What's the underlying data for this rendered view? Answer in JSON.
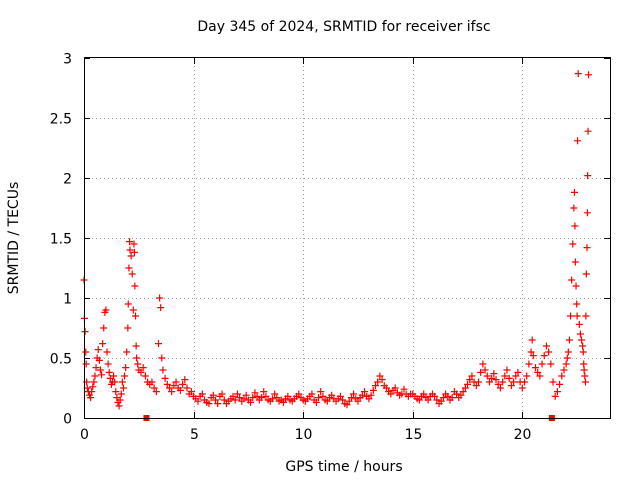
{
  "chart_data": {
    "type": "scatter",
    "title": "Day 345 of 2024, SRMTID for receiver ifsc",
    "xlabel": "GPS time / hours",
    "ylabel": "SRMTID / TECUs",
    "xlim": [
      0,
      24
    ],
    "ylim": [
      0,
      3
    ],
    "x_ticks": [
      0,
      5,
      10,
      15,
      20
    ],
    "x_tick_labels": [
      "0",
      "5",
      "10",
      "15",
      "20"
    ],
    "y_ticks": [
      0,
      0.5,
      1,
      1.5,
      2,
      2.5,
      3
    ],
    "y_tick_labels": [
      "0",
      "0.5",
      "1",
      "1.5",
      "2",
      "2.5",
      "3"
    ],
    "grid": true,
    "marker": "plus",
    "color": "#ff0000",
    "series": [
      {
        "name": "SRMTID",
        "points": [
          [
            0.0,
            1.15
          ],
          [
            0.02,
            0.83
          ],
          [
            0.05,
            0.72
          ],
          [
            0.08,
            0.55
          ],
          [
            0.1,
            0.45
          ],
          [
            0.12,
            0.3
          ],
          [
            0.15,
            0.25
          ],
          [
            0.2,
            0.22
          ],
          [
            0.25,
            0.19
          ],
          [
            0.3,
            0.17
          ],
          [
            0.35,
            0.22
          ],
          [
            0.4,
            0.26
          ],
          [
            0.45,
            0.3
          ],
          [
            0.5,
            0.35
          ],
          [
            0.55,
            0.42
          ],
          [
            0.6,
            0.5
          ],
          [
            0.65,
            0.57
          ],
          [
            0.7,
            0.48
          ],
          [
            0.75,
            0.4
          ],
          [
            0.8,
            0.36
          ],
          [
            0.85,
            0.62
          ],
          [
            0.9,
            0.75
          ],
          [
            0.95,
            0.88
          ],
          [
            1.0,
            0.9
          ],
          [
            1.05,
            0.55
          ],
          [
            1.1,
            0.45
          ],
          [
            1.15,
            0.38
          ],
          [
            1.2,
            0.33
          ],
          [
            1.25,
            0.28
          ],
          [
            1.3,
            0.3
          ],
          [
            1.35,
            0.35
          ],
          [
            1.4,
            0.3
          ],
          [
            1.45,
            0.22
          ],
          [
            1.5,
            0.17
          ],
          [
            1.55,
            0.13
          ],
          [
            1.6,
            0.1
          ],
          [
            1.65,
            0.15
          ],
          [
            1.7,
            0.2
          ],
          [
            1.75,
            0.3
          ],
          [
            1.8,
            0.25
          ],
          [
            1.85,
            0.35
          ],
          [
            1.9,
            0.42
          ],
          [
            1.95,
            0.55
          ],
          [
            2.0,
            0.75
          ],
          [
            2.02,
            0.95
          ],
          [
            2.05,
            1.25
          ],
          [
            2.08,
            1.47
          ],
          [
            2.1,
            1.4
          ],
          [
            2.15,
            1.35
          ],
          [
            2.2,
            1.2
          ],
          [
            2.25,
            0.9
          ],
          [
            2.28,
            1.45
          ],
          [
            2.3,
            1.38
          ],
          [
            2.32,
            1.1
          ],
          [
            2.35,
            0.85
          ],
          [
            2.38,
            0.6
          ],
          [
            2.4,
            0.5
          ],
          [
            2.45,
            0.45
          ],
          [
            2.5,
            0.4
          ],
          [
            2.6,
            0.38
          ],
          [
            2.7,
            0.42
          ],
          [
            2.8,
            0.35
          ],
          [
            2.9,
            0.3
          ],
          [
            3.0,
            0.28
          ],
          [
            3.1,
            0.3
          ],
          [
            3.2,
            0.25
          ],
          [
            3.3,
            0.22
          ],
          [
            3.4,
            0.62
          ],
          [
            3.45,
            1.0
          ],
          [
            3.5,
            0.92
          ],
          [
            3.55,
            0.5
          ],
          [
            3.6,
            0.4
          ],
          [
            3.7,
            0.33
          ],
          [
            3.8,
            0.28
          ],
          [
            3.9,
            0.25
          ],
          [
            4.0,
            0.22
          ],
          [
            4.1,
            0.27
          ],
          [
            4.2,
            0.3
          ],
          [
            4.3,
            0.25
          ],
          [
            4.4,
            0.23
          ],
          [
            4.5,
            0.28
          ],
          [
            4.6,
            0.32
          ],
          [
            4.7,
            0.25
          ],
          [
            4.8,
            0.2
          ],
          [
            4.9,
            0.22
          ],
          [
            5.0,
            0.18
          ],
          [
            5.1,
            0.16
          ],
          [
            5.2,
            0.14
          ],
          [
            5.3,
            0.18
          ],
          [
            5.4,
            0.2
          ],
          [
            5.5,
            0.15
          ],
          [
            5.6,
            0.13
          ],
          [
            5.7,
            0.12
          ],
          [
            5.8,
            0.17
          ],
          [
            5.9,
            0.19
          ],
          [
            6.0,
            0.15
          ],
          [
            6.1,
            0.12
          ],
          [
            6.2,
            0.18
          ],
          [
            6.3,
            0.2
          ],
          [
            6.4,
            0.15
          ],
          [
            6.5,
            0.12
          ],
          [
            6.6,
            0.14
          ],
          [
            6.7,
            0.16
          ],
          [
            6.8,
            0.18
          ],
          [
            6.9,
            0.15
          ],
          [
            7.0,
            0.2
          ],
          [
            7.1,
            0.17
          ],
          [
            7.2,
            0.14
          ],
          [
            7.3,
            0.16
          ],
          [
            7.4,
            0.19
          ],
          [
            7.5,
            0.15
          ],
          [
            7.6,
            0.13
          ],
          [
            7.7,
            0.17
          ],
          [
            7.8,
            0.21
          ],
          [
            7.9,
            0.18
          ],
          [
            8.0,
            0.15
          ],
          [
            8.1,
            0.17
          ],
          [
            8.2,
            0.22
          ],
          [
            8.3,
            0.18
          ],
          [
            8.4,
            0.15
          ],
          [
            8.5,
            0.14
          ],
          [
            8.6,
            0.16
          ],
          [
            8.7,
            0.2
          ],
          [
            8.8,
            0.17
          ],
          [
            8.9,
            0.14
          ],
          [
            9.0,
            0.15
          ],
          [
            9.1,
            0.13
          ],
          [
            9.2,
            0.16
          ],
          [
            9.3,
            0.18
          ],
          [
            9.4,
            0.15
          ],
          [
            9.5,
            0.14
          ],
          [
            9.6,
            0.16
          ],
          [
            9.7,
            0.18
          ],
          [
            9.8,
            0.2
          ],
          [
            9.9,
            0.17
          ],
          [
            10.0,
            0.15
          ],
          [
            10.1,
            0.14
          ],
          [
            10.2,
            0.16
          ],
          [
            10.3,
            0.18
          ],
          [
            10.4,
            0.2
          ],
          [
            10.5,
            0.15
          ],
          [
            10.6,
            0.13
          ],
          [
            10.7,
            0.17
          ],
          [
            10.8,
            0.22
          ],
          [
            10.9,
            0.18
          ],
          [
            11.0,
            0.15
          ],
          [
            11.1,
            0.14
          ],
          [
            11.2,
            0.17
          ],
          [
            11.3,
            0.19
          ],
          [
            11.4,
            0.16
          ],
          [
            11.5,
            0.14
          ],
          [
            11.6,
            0.16
          ],
          [
            11.7,
            0.18
          ],
          [
            11.8,
            0.15
          ],
          [
            11.9,
            0.12
          ],
          [
            12.0,
            0.11
          ],
          [
            12.1,
            0.14
          ],
          [
            12.2,
            0.17
          ],
          [
            12.3,
            0.2
          ],
          [
            12.4,
            0.16
          ],
          [
            12.5,
            0.14
          ],
          [
            12.6,
            0.17
          ],
          [
            12.7,
            0.19
          ],
          [
            12.8,
            0.22
          ],
          [
            12.9,
            0.18
          ],
          [
            13.0,
            0.16
          ],
          [
            13.1,
            0.19
          ],
          [
            13.2,
            0.23
          ],
          [
            13.3,
            0.27
          ],
          [
            13.4,
            0.3
          ],
          [
            13.5,
            0.35
          ],
          [
            13.6,
            0.32
          ],
          [
            13.7,
            0.27
          ],
          [
            13.8,
            0.25
          ],
          [
            13.9,
            0.22
          ],
          [
            14.0,
            0.2
          ],
          [
            14.1,
            0.23
          ],
          [
            14.2,
            0.25
          ],
          [
            14.3,
            0.21
          ],
          [
            14.4,
            0.19
          ],
          [
            14.5,
            0.2
          ],
          [
            14.6,
            0.24
          ],
          [
            14.7,
            0.2
          ],
          [
            14.8,
            0.18
          ],
          [
            14.9,
            0.2
          ],
          [
            15.0,
            0.2
          ],
          [
            15.1,
            0.18
          ],
          [
            15.2,
            0.16
          ],
          [
            15.3,
            0.15
          ],
          [
            15.4,
            0.18
          ],
          [
            15.5,
            0.2
          ],
          [
            15.6,
            0.17
          ],
          [
            15.7,
            0.15
          ],
          [
            15.8,
            0.18
          ],
          [
            15.9,
            0.2
          ],
          [
            16.0,
            0.18
          ],
          [
            16.1,
            0.15
          ],
          [
            16.2,
            0.12
          ],
          [
            16.3,
            0.14
          ],
          [
            16.4,
            0.17
          ],
          [
            16.5,
            0.2
          ],
          [
            16.6,
            0.18
          ],
          [
            16.7,
            0.15
          ],
          [
            16.8,
            0.17
          ],
          [
            16.9,
            0.22
          ],
          [
            17.0,
            0.2
          ],
          [
            17.1,
            0.17
          ],
          [
            17.2,
            0.19
          ],
          [
            17.3,
            0.22
          ],
          [
            17.4,
            0.25
          ],
          [
            17.5,
            0.28
          ],
          [
            17.6,
            0.32
          ],
          [
            17.7,
            0.35
          ],
          [
            17.8,
            0.3
          ],
          [
            17.9,
            0.27
          ],
          [
            18.0,
            0.3
          ],
          [
            18.1,
            0.38
          ],
          [
            18.2,
            0.45
          ],
          [
            18.3,
            0.4
          ],
          [
            18.4,
            0.35
          ],
          [
            18.5,
            0.3
          ],
          [
            18.6,
            0.33
          ],
          [
            18.7,
            0.37
          ],
          [
            18.8,
            0.32
          ],
          [
            18.9,
            0.28
          ],
          [
            19.0,
            0.25
          ],
          [
            19.1,
            0.3
          ],
          [
            19.2,
            0.35
          ],
          [
            19.3,
            0.4
          ],
          [
            19.4,
            0.33
          ],
          [
            19.5,
            0.27
          ],
          [
            19.6,
            0.3
          ],
          [
            19.7,
            0.35
          ],
          [
            19.8,
            0.38
          ],
          [
            19.9,
            0.3
          ],
          [
            20.0,
            0.25
          ],
          [
            20.1,
            0.3
          ],
          [
            20.2,
            0.35
          ],
          [
            20.3,
            0.45
          ],
          [
            20.4,
            0.55
          ],
          [
            20.45,
            0.65
          ],
          [
            20.5,
            0.52
          ],
          [
            20.6,
            0.42
          ],
          [
            20.7,
            0.38
          ],
          [
            20.8,
            0.35
          ],
          [
            20.9,
            0.45
          ],
          [
            21.0,
            0.52
          ],
          [
            21.1,
            0.6
          ],
          [
            21.2,
            0.55
          ],
          [
            21.3,
            0.45
          ],
          [
            21.4,
            0.3
          ],
          [
            21.5,
            0.18
          ],
          [
            21.6,
            0.22
          ],
          [
            21.7,
            0.28
          ],
          [
            21.8,
            0.35
          ],
          [
            21.9,
            0.4
          ],
          [
            22.0,
            0.45
          ],
          [
            22.05,
            0.5
          ],
          [
            22.1,
            0.55
          ],
          [
            22.15,
            0.65
          ],
          [
            22.2,
            0.85
          ],
          [
            22.25,
            1.15
          ],
          [
            22.3,
            1.45
          ],
          [
            22.35,
            1.75
          ],
          [
            22.38,
            1.88
          ],
          [
            22.4,
            1.6
          ],
          [
            22.42,
            1.3
          ],
          [
            22.45,
            1.1
          ],
          [
            22.48,
            0.95
          ],
          [
            22.5,
            0.85
          ],
          [
            22.52,
            2.31
          ],
          [
            22.55,
            2.87
          ],
          [
            22.6,
            0.78
          ],
          [
            22.65,
            0.7
          ],
          [
            22.7,
            0.65
          ],
          [
            22.75,
            0.6
          ],
          [
            22.78,
            0.55
          ],
          [
            22.8,
            0.45
          ],
          [
            22.82,
            0.4
          ],
          [
            22.85,
            0.35
          ],
          [
            22.88,
            0.3
          ],
          [
            22.9,
            0.85
          ],
          [
            22.92,
            1.2
          ],
          [
            22.95,
            1.42
          ],
          [
            22.97,
            1.71
          ],
          [
            22.98,
            2.02
          ],
          [
            23.0,
            2.39
          ],
          [
            23.02,
            2.86
          ]
        ]
      }
    ],
    "gap_markers_x": [
      2.85,
      21.35
    ]
  }
}
